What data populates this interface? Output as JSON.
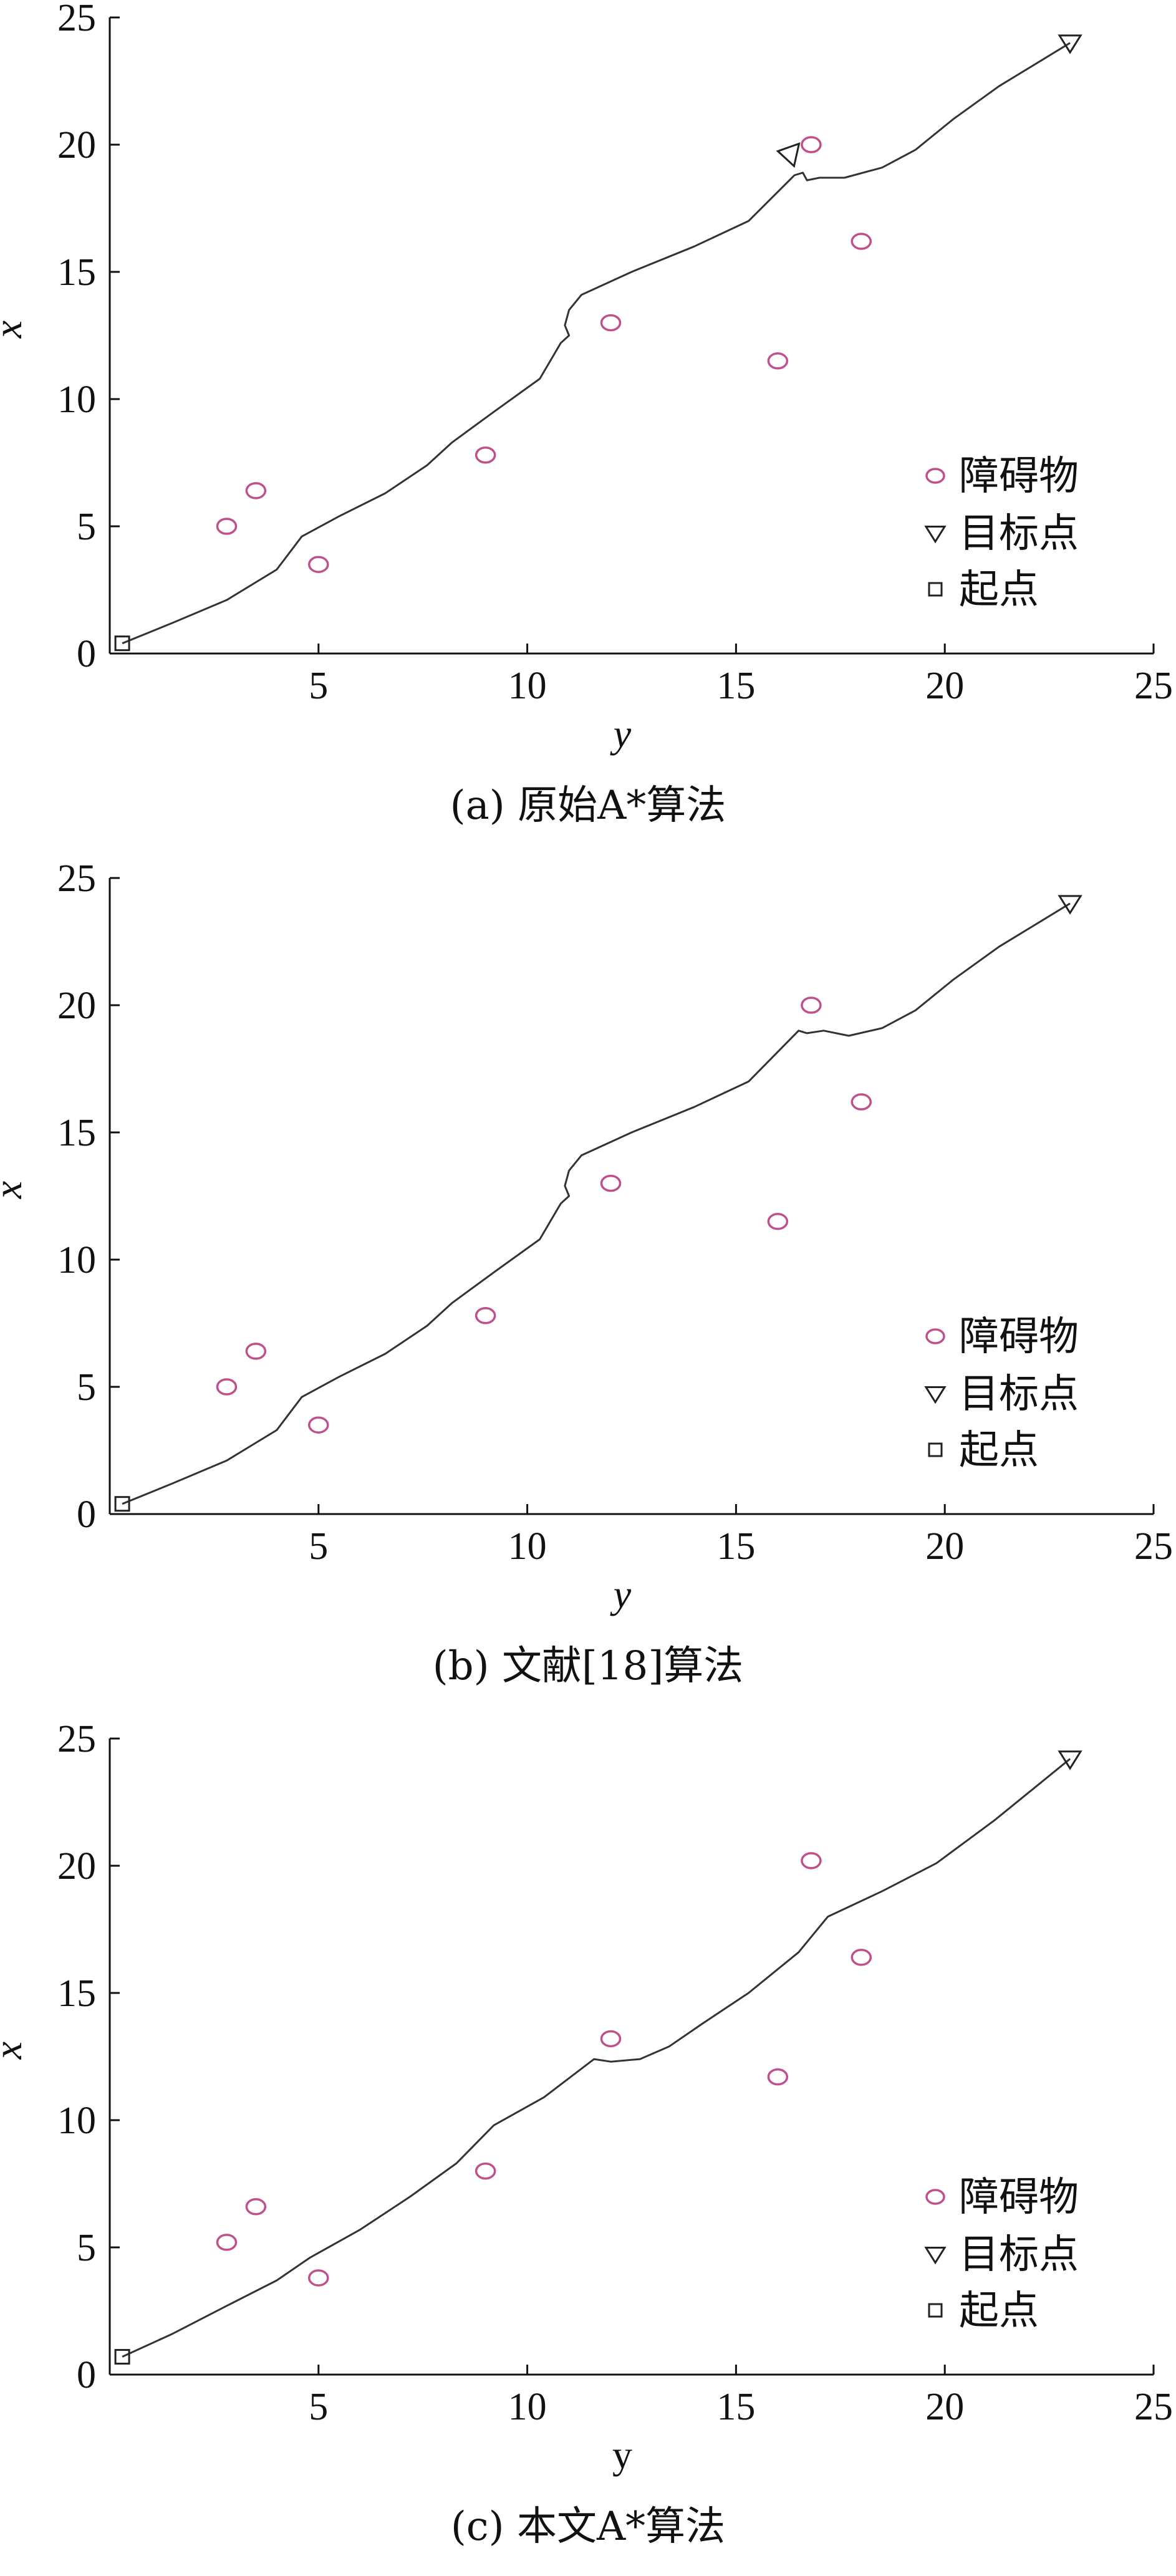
{
  "chart_data": [
    {
      "type": "scatter",
      "caption": "(a) 原始A*算法",
      "xlabel": "y",
      "ylabel": "x",
      "xlabel_italic": true,
      "xlim": [
        0,
        25
      ],
      "ylim": [
        0,
        25
      ],
      "xticks": [
        5,
        10,
        15,
        20,
        25
      ],
      "yticks": [
        0,
        5,
        10,
        15,
        20,
        25
      ],
      "grid": false,
      "legend_position": "bottom-right",
      "legend": [
        "障碍物",
        "目标点",
        "起点"
      ],
      "obstacles": [
        [
          2.8,
          5.0
        ],
        [
          3.5,
          6.4
        ],
        [
          5.0,
          3.5
        ],
        [
          9.0,
          7.8
        ],
        [
          12.0,
          13.0
        ],
        [
          16.0,
          11.5
        ],
        [
          16.8,
          20.0
        ],
        [
          18.0,
          16.2
        ]
      ],
      "start": [
        0.3,
        0.4
      ],
      "goal": [
        23.0,
        24.0
      ],
      "extra_goal_marker": [
        16.3,
        19.5
      ],
      "path": [
        [
          0.3,
          0.4
        ],
        [
          1.5,
          1.2
        ],
        [
          2.8,
          2.1
        ],
        [
          4.0,
          3.3
        ],
        [
          4.6,
          4.6
        ],
        [
          5.5,
          5.4
        ],
        [
          6.6,
          6.3
        ],
        [
          7.6,
          7.4
        ],
        [
          8.2,
          8.3
        ],
        [
          9.2,
          9.5
        ],
        [
          10.3,
          10.8
        ],
        [
          10.8,
          12.2
        ],
        [
          11.0,
          12.5
        ],
        [
          10.9,
          12.9
        ],
        [
          11.0,
          13.5
        ],
        [
          11.3,
          14.1
        ],
        [
          12.5,
          15.0
        ],
        [
          14.0,
          16.0
        ],
        [
          15.3,
          17.0
        ],
        [
          16.4,
          18.8
        ],
        [
          16.6,
          18.9
        ],
        [
          16.7,
          18.6
        ],
        [
          17.0,
          18.7
        ],
        [
          17.6,
          18.7
        ],
        [
          18.5,
          19.1
        ],
        [
          19.3,
          19.8
        ],
        [
          20.2,
          21.0
        ],
        [
          21.3,
          22.3
        ],
        [
          23.0,
          24.0
        ]
      ]
    },
    {
      "type": "scatter",
      "caption": "(b) 文献[18]算法",
      "xlabel": "y",
      "ylabel": "x",
      "xlabel_italic": true,
      "xlim": [
        0,
        25
      ],
      "ylim": [
        0,
        25
      ],
      "xticks": [
        5,
        10,
        15,
        20,
        25
      ],
      "yticks": [
        0,
        5,
        10,
        15,
        20,
        25
      ],
      "grid": false,
      "legend_position": "bottom-right",
      "legend": [
        "障碍物",
        "目标点",
        "起点"
      ],
      "obstacles": [
        [
          2.8,
          5.0
        ],
        [
          3.5,
          6.4
        ],
        [
          5.0,
          3.5
        ],
        [
          9.0,
          7.8
        ],
        [
          12.0,
          13.0
        ],
        [
          16.0,
          11.5
        ],
        [
          16.8,
          20.0
        ],
        [
          18.0,
          16.2
        ]
      ],
      "start": [
        0.3,
        0.4
      ],
      "goal": [
        23.0,
        24.0
      ],
      "path": [
        [
          0.3,
          0.4
        ],
        [
          1.5,
          1.2
        ],
        [
          2.8,
          2.1
        ],
        [
          4.0,
          3.3
        ],
        [
          4.6,
          4.6
        ],
        [
          5.5,
          5.4
        ],
        [
          6.6,
          6.3
        ],
        [
          7.6,
          7.4
        ],
        [
          8.2,
          8.3
        ],
        [
          9.2,
          9.5
        ],
        [
          10.3,
          10.8
        ],
        [
          10.8,
          12.2
        ],
        [
          11.0,
          12.5
        ],
        [
          10.9,
          12.9
        ],
        [
          11.0,
          13.5
        ],
        [
          11.3,
          14.1
        ],
        [
          12.5,
          15.0
        ],
        [
          14.0,
          16.0
        ],
        [
          15.3,
          17.0
        ],
        [
          16.5,
          19.0
        ],
        [
          16.7,
          18.9
        ],
        [
          17.1,
          19.0
        ],
        [
          17.7,
          18.8
        ],
        [
          18.5,
          19.1
        ],
        [
          19.3,
          19.8
        ],
        [
          20.2,
          21.0
        ],
        [
          21.3,
          22.3
        ],
        [
          23.0,
          24.0
        ]
      ]
    },
    {
      "type": "scatter",
      "caption": "(c) 本文A*算法",
      "xlabel": "y",
      "ylabel": "x",
      "xlabel_italic": false,
      "xlim": [
        0,
        25
      ],
      "ylim": [
        0,
        25
      ],
      "xticks": [
        5,
        10,
        15,
        20,
        25
      ],
      "yticks": [
        0,
        5,
        10,
        15,
        20,
        25
      ],
      "grid": false,
      "legend_position": "bottom-right",
      "legend": [
        "障碍物",
        "目标点",
        "起点"
      ],
      "obstacles": [
        [
          2.8,
          5.2
        ],
        [
          3.5,
          6.6
        ],
        [
          5.0,
          3.8
        ],
        [
          9.0,
          8.0
        ],
        [
          12.0,
          13.2
        ],
        [
          16.0,
          11.7
        ],
        [
          16.8,
          20.2
        ],
        [
          18.0,
          16.4
        ]
      ],
      "start": [
        0.3,
        0.7
      ],
      "goal": [
        23.0,
        24.2
      ],
      "path": [
        [
          0.3,
          0.7
        ],
        [
          1.5,
          1.6
        ],
        [
          2.8,
          2.7
        ],
        [
          4.0,
          3.7
        ],
        [
          4.8,
          4.6
        ],
        [
          6.0,
          5.7
        ],
        [
          7.2,
          7.0
        ],
        [
          8.3,
          8.3
        ],
        [
          9.2,
          9.8
        ],
        [
          10.4,
          10.9
        ],
        [
          11.6,
          12.4
        ],
        [
          12.0,
          12.3
        ],
        [
          12.7,
          12.4
        ],
        [
          13.4,
          12.9
        ],
        [
          14.2,
          13.8
        ],
        [
          15.3,
          15.0
        ],
        [
          16.5,
          16.6
        ],
        [
          17.2,
          18.0
        ],
        [
          18.5,
          19.0
        ],
        [
          19.8,
          20.1
        ],
        [
          21.2,
          21.8
        ],
        [
          23.0,
          24.2
        ]
      ]
    }
  ]
}
